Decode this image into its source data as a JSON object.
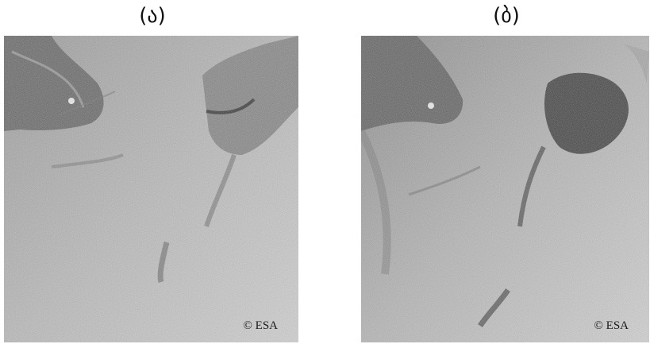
{
  "panels": [
    {
      "label": "(ა)",
      "credit": "© ESA"
    },
    {
      "label": "(ბ)",
      "credit": "© ESA"
    }
  ]
}
